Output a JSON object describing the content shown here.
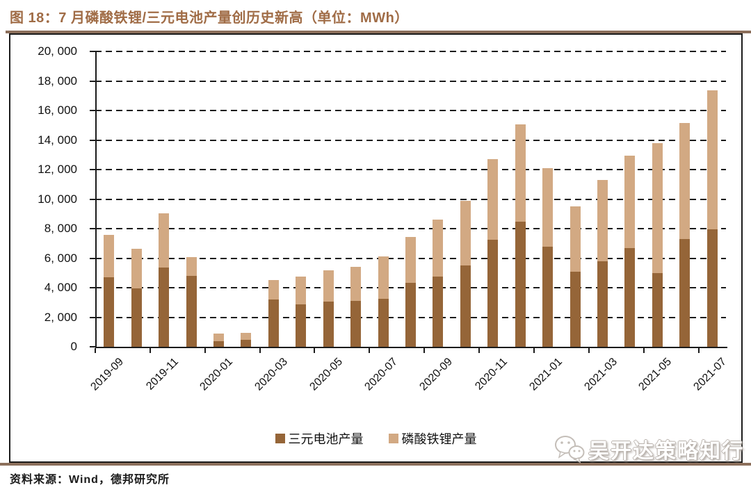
{
  "figure": {
    "title": "图 18：7 月磷酸铁锂/三元电池产量创历史新高（单位：MWh）",
    "source_note": "资料来源：Wind，德邦研究所",
    "watermark_text": "吴开达策略知行",
    "watermark_icon": "wechat-icon"
  },
  "colors": {
    "ternary_bar": "#956538",
    "lfp_bar": "#D2A983",
    "title_text": "#A06C46",
    "rule": "#8C6F5B",
    "axis": "#1b1b1b"
  },
  "legend": {
    "items": [
      {
        "label": "三元电池产量",
        "color": "#956538"
      },
      {
        "label": "磷酸铁锂产量",
        "color": "#D2A983"
      }
    ],
    "position": "bottom-center"
  },
  "chart_data": {
    "type": "bar",
    "stacked": true,
    "unit": "MWh",
    "title": "7 月磷酸铁锂/三元电池产量创历史新高",
    "xlabel": "",
    "ylabel": "",
    "ylim": [
      0,
      20000
    ],
    "y_tick_step": 2000,
    "y_tick_labels": [
      "20, 000",
      "18, 000",
      "16, 000",
      "14, 000",
      "12, 000",
      "10, 000",
      "8, 000",
      "6, 000",
      "4, 000",
      "2, 000",
      "0"
    ],
    "grid": "dashed-horizontal",
    "legend_position": "bottom-center",
    "categories": [
      "2019-09",
      "2019-10",
      "2019-11",
      "2019-12",
      "2020-01",
      "2020-02",
      "2020-03",
      "2020-04",
      "2020-05",
      "2020-06",
      "2020-07",
      "2020-08",
      "2020-09",
      "2020-10",
      "2020-11",
      "2020-12",
      "2021-01",
      "2021-02",
      "2021-03",
      "2021-04",
      "2021-05",
      "2021-06",
      "2021-07"
    ],
    "x_tick_labels": [
      "2019-09",
      "2019-11",
      "2020-01",
      "2020-03",
      "2020-05",
      "2020-07",
      "2020-09",
      "2020-11",
      "2021-01",
      "2021-03",
      "2021-05",
      "2021-07"
    ],
    "x_label_every": 2,
    "series": [
      {
        "name": "三元电池产量",
        "color": "#956538",
        "values": [
          4700,
          3950,
          5350,
          4800,
          360,
          450,
          3200,
          2870,
          3050,
          3100,
          3270,
          4350,
          4730,
          5500,
          7270,
          8480,
          6800,
          5070,
          5770,
          6680,
          4990,
          7300,
          7960
        ]
      },
      {
        "name": "磷酸铁锂产量",
        "color": "#D2A983",
        "values": [
          2900,
          2700,
          3700,
          1250,
          520,
          490,
          1300,
          1880,
          2150,
          2300,
          2830,
          3070,
          3880,
          4400,
          5440,
          6570,
          5300,
          4420,
          5530,
          6270,
          8820,
          7860,
          9420
        ]
      }
    ],
    "stack_totals": [
      7600,
      6650,
      9050,
      6050,
      880,
      940,
      4500,
      4750,
      5200,
      5400,
      6100,
      7420,
      8610,
      9900,
      12710,
      15050,
      12100,
      9490,
      11300,
      12950,
      13810,
      15160,
      17380
    ]
  }
}
